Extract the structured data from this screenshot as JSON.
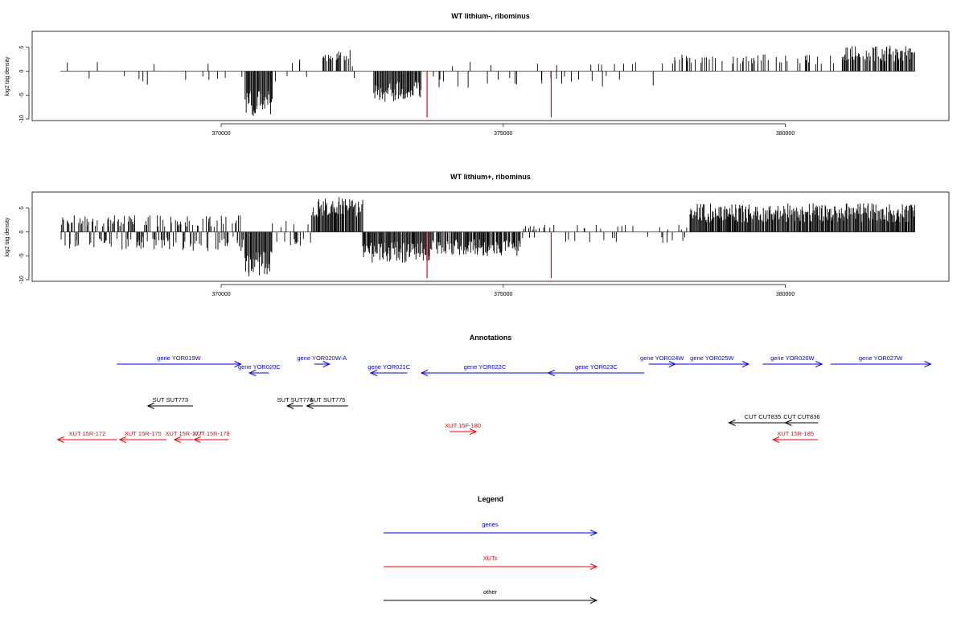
{
  "chart_data": [
    {
      "type": "bar",
      "title": "WT lithium-, ribominus",
      "ylabel": "log2 tag density",
      "xlim": [
        366650,
        382900
      ],
      "ylim": [
        -10,
        8
      ],
      "xticks": [
        370000,
        375000,
        380000
      ],
      "yticks": [
        5,
        0,
        -5,
        -10
      ],
      "grid": false,
      "highlight_color": "#ff0000",
      "bar_color": "#000000",
      "highlight_x": [
        373650,
        375850
      ],
      "highlight_y": [
        -9.7,
        -9.7
      ],
      "regions": [
        {
          "start": 367150,
          "end": 369700,
          "density": 0.06,
          "seed": 3,
          "pos": [
            1.2,
            2.0
          ],
          "neg": [
            1.0,
            3.0
          ]
        },
        {
          "start": 369700,
          "end": 370400,
          "density": 0.1,
          "seed": 7,
          "pos": [
            1.5,
            2.6
          ],
          "neg": [
            1.0,
            2.5
          ]
        },
        {
          "start": 370420,
          "end": 370900,
          "density": 1.0,
          "seed": 11,
          "pos": [
            0,
            0
          ],
          "neg": [
            4.0,
            9.5
          ]
        },
        {
          "start": 370900,
          "end": 371800,
          "density": 0.12,
          "seed": 13,
          "pos": [
            1.5,
            3.0
          ],
          "neg": [
            1.0,
            3.0
          ]
        },
        {
          "start": 371800,
          "end": 372300,
          "density": 0.5,
          "seed": 17,
          "pos": [
            2.0,
            4.5
          ],
          "neg": [
            0,
            0
          ]
        },
        {
          "start": 372300,
          "end": 372700,
          "density": 0.05,
          "seed": 19,
          "pos": [
            1.0,
            2.0
          ],
          "neg": [
            1.0,
            2.0
          ]
        },
        {
          "start": 372700,
          "end": 373550,
          "density": 1.0,
          "seed": 23,
          "pos": [
            0,
            0
          ],
          "neg": [
            2.0,
            6.5
          ]
        },
        {
          "start": 373550,
          "end": 378000,
          "density": 0.1,
          "seed": 29,
          "pos": [
            1.0,
            2.0
          ],
          "neg": [
            1.0,
            3.5
          ]
        },
        {
          "start": 378000,
          "end": 381000,
          "density": 0.28,
          "seed": 31,
          "pos": [
            1.5,
            3.5
          ],
          "neg": [
            0,
            0
          ]
        },
        {
          "start": 381000,
          "end": 382300,
          "density": 0.8,
          "seed": 37,
          "pos": [
            2.0,
            5.3
          ],
          "neg": [
            0,
            0
          ]
        }
      ]
    },
    {
      "type": "bar",
      "title": "WT lithium+, ribominus",
      "ylabel": "log2 tag density",
      "xlim": [
        366650,
        382900
      ],
      "ylim": [
        -10,
        8
      ],
      "xticks": [
        370000,
        375000,
        380000
      ],
      "yticks": [
        5,
        0,
        -5,
        -10
      ],
      "grid": false,
      "highlight_color": "#ff0000",
      "bar_color": "#000000",
      "highlight_x": [
        373650,
        375850
      ],
      "highlight_y": [
        -9.7,
        -9.7
      ],
      "regions": [
        {
          "start": 367150,
          "end": 370400,
          "density": 0.75,
          "seed": 41,
          "pos": [
            1.0,
            3.5
          ],
          "neg": [
            1.0,
            4.0
          ]
        },
        {
          "start": 370420,
          "end": 370900,
          "density": 1.0,
          "seed": 43,
          "pos": [
            0,
            0
          ],
          "neg": [
            4.0,
            9.5
          ]
        },
        {
          "start": 370900,
          "end": 371600,
          "density": 0.3,
          "seed": 47,
          "pos": [
            1.0,
            3.0
          ],
          "neg": [
            1.0,
            3.0
          ]
        },
        {
          "start": 371600,
          "end": 372500,
          "density": 1.0,
          "seed": 53,
          "pos": [
            3.0,
            7.5
          ],
          "neg": [
            0,
            0
          ]
        },
        {
          "start": 372500,
          "end": 373700,
          "density": 1.0,
          "seed": 59,
          "pos": [
            0,
            0
          ],
          "neg": [
            2.0,
            6.5
          ]
        },
        {
          "start": 373700,
          "end": 375300,
          "density": 0.9,
          "seed": 61,
          "pos": [
            0,
            0
          ],
          "neg": [
            1.5,
            5.0
          ]
        },
        {
          "start": 375300,
          "end": 378300,
          "density": 0.18,
          "seed": 67,
          "pos": [
            0.5,
            1.5
          ],
          "neg": [
            1.0,
            2.5
          ]
        },
        {
          "start": 378300,
          "end": 382300,
          "density": 1.0,
          "seed": 71,
          "pos": [
            2.0,
            6.0
          ],
          "neg": [
            0,
            0
          ]
        }
      ]
    }
  ],
  "annotations": {
    "title": "Annotations",
    "features": [
      {
        "label": "gene YOR019W",
        "start": 368150,
        "end": 370350,
        "strand": "+",
        "color": "#0000ff",
        "row": 0
      },
      {
        "label": "gene YOR020C",
        "start": 370500,
        "end": 370850,
        "strand": "-",
        "color": "#0000ff",
        "row": 1
      },
      {
        "label": "gene YOR020W-A",
        "start": 371650,
        "end": 371920,
        "strand": "+",
        "color": "#0000ff",
        "row": 0
      },
      {
        "label": "gene YOR021C",
        "start": 372650,
        "end": 373300,
        "strand": "-",
        "color": "#0000ff",
        "row": 1
      },
      {
        "label": "gene YOR022C",
        "start": 373550,
        "end": 375800,
        "strand": "-",
        "color": "#0000ff",
        "row": 1
      },
      {
        "label": "gene YOR023C",
        "start": 375800,
        "end": 377500,
        "strand": "-",
        "color": "#0000ff",
        "row": 1
      },
      {
        "label": "gene YOR024W",
        "start": 377580,
        "end": 378050,
        "strand": "+",
        "color": "#0000ff",
        "row": 0
      },
      {
        "label": "gene YOR025W",
        "start": 378050,
        "end": 379350,
        "strand": "+",
        "color": "#0000ff",
        "row": 0
      },
      {
        "label": "gene YOR026W",
        "start": 379600,
        "end": 380650,
        "strand": "+",
        "color": "#0000ff",
        "row": 0
      },
      {
        "label": "gene YOR027W",
        "start": 380800,
        "end": 382580,
        "strand": "+",
        "color": "#0000ff",
        "row": 0
      },
      {
        "label": "SUT SUT773",
        "start": 368700,
        "end": 369500,
        "strand": "-",
        "color": "#000000",
        "row": 2
      },
      {
        "label": "SUT SUT774",
        "start": 371170,
        "end": 371450,
        "strand": "-",
        "color": "#000000",
        "row": 2
      },
      {
        "label": "SUT SUT775",
        "start": 371520,
        "end": 372250,
        "strand": "-",
        "color": "#000000",
        "row": 2
      },
      {
        "label": "CUT CUT835",
        "start": 379000,
        "end": 380200,
        "strand": "-",
        "color": "#000000",
        "row": 3
      },
      {
        "label": "CUT CUT836",
        "start": 380000,
        "end": 380580,
        "strand": "-",
        "color": "#000000",
        "row": 3
      },
      {
        "label": "XUT 15R-172",
        "start": 367100,
        "end": 368150,
        "strand": "-",
        "color": "#ff0000",
        "row": 4
      },
      {
        "label": "XUT 15R-175",
        "start": 368200,
        "end": 369030,
        "strand": "-",
        "color": "#ff0000",
        "row": 4
      },
      {
        "label": "XUT 15R-177",
        "start": 369170,
        "end": 369500,
        "strand": "-",
        "color": "#ff0000",
        "row": 4
      },
      {
        "label": "XUT 15R-178",
        "start": 369520,
        "end": 370130,
        "strand": "-",
        "color": "#ff0000",
        "row": 4
      },
      {
        "label": "XUT 15F-180",
        "start": 374050,
        "end": 374520,
        "strand": "+",
        "color": "#ff0000",
        "row": 5
      },
      {
        "label": "XUT 15R-185",
        "start": 379780,
        "end": 380580,
        "strand": "-",
        "color": "#ff0000",
        "row": 4
      }
    ]
  },
  "legend": {
    "title": "Legend",
    "items": [
      {
        "label": "genes",
        "color": "#0000ff"
      },
      {
        "label": "XUTs",
        "color": "#ff0000"
      },
      {
        "label": "other",
        "color": "#000000"
      }
    ]
  }
}
